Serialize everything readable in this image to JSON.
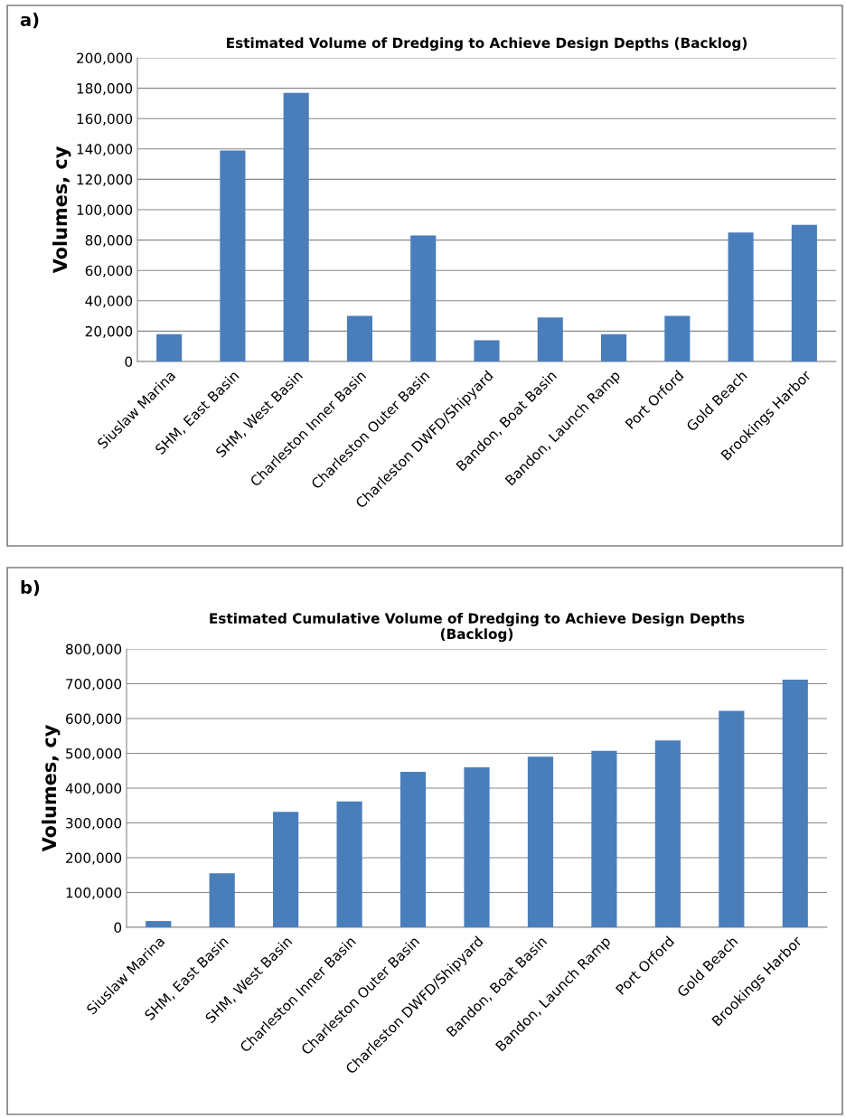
{
  "chart_data": [
    {
      "type": "bar",
      "title": "Estimated Volume of Dredging to Achieve Design Depths (Backlog)",
      "ylabel": "Volumes, cy",
      "annotations": [
        "a)"
      ],
      "categories": [
        "Siuslaw Marina",
        "SHM, East Basin",
        "SHM, West Basin",
        "Charleston Inner Basin",
        "Charleston Outer Basin",
        "Charleston DWFD/Shipyard",
        "Bandon, Boat Basin",
        "Bandon, Launch Ramp",
        "Port Orford",
        "Gold Beach",
        "Brookings Harbor"
      ],
      "values": [
        18000,
        139000,
        177000,
        30000,
        83000,
        14000,
        29000,
        18000,
        30000,
        85000,
        90000
      ],
      "color": "#4a7ebb",
      "ylim": [
        0,
        200000
      ],
      "yticks": [
        {
          "value": 0,
          "label": "0"
        },
        {
          "value": 20000,
          "label": "20,000"
        },
        {
          "value": 40000,
          "label": "40,000"
        },
        {
          "value": 60000,
          "label": "60,000"
        },
        {
          "value": 80000,
          "label": "80,000"
        },
        {
          "value": 100000,
          "label": "100,000"
        },
        {
          "value": 120000,
          "label": "120,000"
        },
        {
          "value": 140000,
          "label": "140,000"
        },
        {
          "value": 160000,
          "label": "160,000"
        },
        {
          "value": 180000,
          "label": "180,000"
        },
        {
          "value": 200000,
          "label": "200,000"
        }
      ],
      "grid": "y",
      "legend": false
    },
    {
      "type": "bar",
      "title": "Estimated Cumulative Volume of Dredging to Achieve Design Depths\n(Backlog)",
      "ylabel": "Volumes, cy",
      "annotations": [
        "b)"
      ],
      "categories": [
        "Siuslaw Marina",
        "SHM, East Basin",
        "SHM, West Basin",
        "Charleston Inner Basin",
        "Charleston Outer Basin",
        "Charleston DWFD/Shipyard",
        "Bandon, Boat Basin",
        "Bandon, Launch Ramp",
        "Port Orford",
        "Gold Beach",
        "Brookings Harbor"
      ],
      "values": [
        18000,
        155000,
        332000,
        362000,
        447000,
        460000,
        490000,
        507000,
        537000,
        622000,
        712000
      ],
      "color": "#4a7ebb",
      "ylim": [
        0,
        800000
      ],
      "yticks": [
        {
          "value": 0,
          "label": "0"
        },
        {
          "value": 100000,
          "label": "100,000"
        },
        {
          "value": 200000,
          "label": "200,000"
        },
        {
          "value": 300000,
          "label": "300,000"
        },
        {
          "value": 400000,
          "label": "400,000"
        },
        {
          "value": 500000,
          "label": "500,000"
        },
        {
          "value": 600000,
          "label": "600,000"
        },
        {
          "value": 700000,
          "label": "700,000"
        },
        {
          "value": 800000,
          "label": "800,000"
        }
      ],
      "grid": "y",
      "legend": false
    }
  ]
}
